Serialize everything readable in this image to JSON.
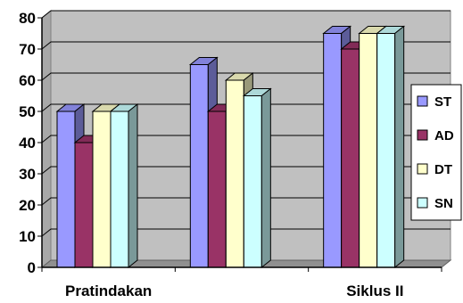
{
  "chart_data": {
    "type": "bar",
    "style": "3d-clustered-column",
    "categories": [
      "Pratindakan",
      "",
      "Siklus II"
    ],
    "series": [
      {
        "name": "ST",
        "values": [
          50,
          65,
          75
        ],
        "color": "#9999FF"
      },
      {
        "name": "AD",
        "values": [
          40,
          50,
          70
        ],
        "color": "#993366"
      },
      {
        "name": "DT",
        "values": [
          50,
          60,
          75
        ],
        "color": "#FFFFCC"
      },
      {
        "name": "SN",
        "values": [
          50,
          55,
          75
        ],
        "color": "#CCFFFF"
      }
    ],
    "ylim": [
      0,
      80
    ],
    "yticks": [
      0,
      10,
      20,
      30,
      40,
      50,
      60,
      70,
      80
    ],
    "grid": true,
    "plot_background": "#C0C0C0",
    "legend_position": "right",
    "title": "",
    "xlabel": "",
    "ylabel": ""
  }
}
